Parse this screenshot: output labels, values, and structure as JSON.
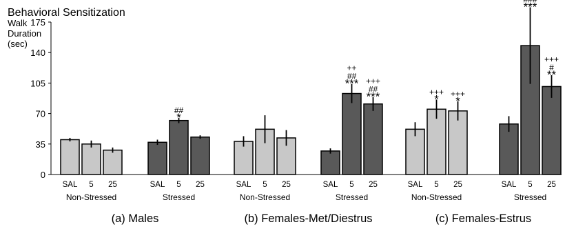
{
  "chart_data": {
    "type": "bar",
    "title": "Behavioral Sensitization",
    "ylabel": [
      "Walk",
      "Duration",
      "(sec)"
    ],
    "ylim": [
      0,
      175
    ],
    "yticks": [
      0,
      35,
      70,
      105,
      140,
      175
    ],
    "grid": false,
    "legend": "none",
    "colors": {
      "non_stressed": "#c8c8c8",
      "stressed": "#595959",
      "edge": "#000000"
    },
    "panels": [
      {
        "label": "(a) Males",
        "groups": [
          {
            "label": "Non-Stressed",
            "kind": "non_stressed",
            "categories": [
              "SAL",
              "5",
              "25"
            ],
            "values": [
              40,
              35,
              28
            ],
            "errors": [
              2,
              4,
              3
            ],
            "annotations": [
              [],
              [],
              []
            ]
          },
          {
            "label": "Stressed",
            "kind": "stressed",
            "categories": [
              "SAL",
              "5",
              "25"
            ],
            "values": [
              37,
              62,
              43
            ],
            "errors": [
              3,
              3,
              2
            ],
            "annotations": [
              [],
              [
                "##",
                "*"
              ],
              []
            ]
          }
        ]
      },
      {
        "label": "(b) Females-Met/Diestrus",
        "groups": [
          {
            "label": "Non-Stressed",
            "kind": "non_stressed",
            "categories": [
              "SAL",
              "5",
              "25"
            ],
            "values": [
              38,
              52,
              42
            ],
            "errors": [
              6,
              16,
              9
            ],
            "annotations": [
              [],
              [],
              []
            ]
          },
          {
            "label": "Stressed",
            "kind": "stressed",
            "categories": [
              "SAL",
              "5",
              "25"
            ],
            "values": [
              27,
              93,
              81
            ],
            "errors": [
              3,
              11,
              8
            ],
            "annotations": [
              [],
              [
                "++",
                "##",
                "***"
              ],
              [
                "+++",
                "##",
                "***"
              ]
            ]
          }
        ]
      },
      {
        "label": "(c) Females-Estrus",
        "groups": [
          {
            "label": "Non-Stressed",
            "kind": "non_stressed",
            "categories": [
              "SAL",
              "5",
              "25"
            ],
            "values": [
              52,
              75,
              73
            ],
            "errors": [
              8,
              11,
              11
            ],
            "annotations": [
              [],
              [
                "+++",
                "*"
              ],
              [
                "+++",
                "*"
              ]
            ]
          },
          {
            "label": "Stressed",
            "kind": "stressed",
            "categories": [
              "SAL",
              "5",
              "25"
            ],
            "values": [
              58,
              148,
              101
            ],
            "errors": [
              9,
              44,
              13
            ],
            "annotations": [
              [],
              [
                "+++",
                "###",
                "***"
              ],
              [
                "+++",
                "#",
                "**"
              ]
            ]
          }
        ]
      }
    ]
  }
}
